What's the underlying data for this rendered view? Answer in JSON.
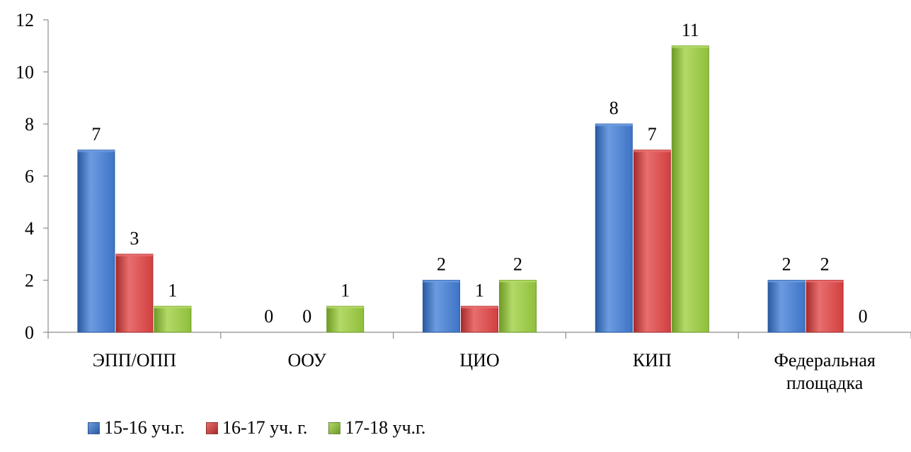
{
  "chart_data": {
    "type": "bar",
    "categories": [
      [
        "ЭПП/ОПП"
      ],
      [
        "ООУ"
      ],
      [
        "ЦИО"
      ],
      [
        "КИП"
      ],
      [
        "Федеральная",
        "площадка"
      ]
    ],
    "series": [
      {
        "name": "15-16 уч.г.",
        "values": [
          7,
          0,
          2,
          8,
          2
        ],
        "labels": [
          "7",
          "0",
          "2",
          "8",
          "2"
        ],
        "color": "#3e74c6",
        "color_light": "#6c9be0",
        "color_dark": "#2a5a9f"
      },
      {
        "name": "16-17 уч. г.",
        "values": [
          3,
          0,
          1,
          7,
          2
        ],
        "labels": [
          "3",
          "0",
          "1",
          "7",
          "2"
        ],
        "color": "#d23f3f",
        "color_light": "#e86e6e",
        "color_dark": "#a62b2b"
      },
      {
        "name": "17-18 уч.г.",
        "values": [
          1,
          1,
          2,
          11,
          0
        ],
        "labels": [
          "1",
          "1",
          "2",
          "11",
          "0"
        ],
        "color": "#8fbf3a",
        "color_light": "#b3d968",
        "color_dark": "#6e9a26"
      }
    ],
    "yticks": [
      "0",
      "2",
      "4",
      "6",
      "8",
      "10",
      "12"
    ],
    "ylim": [
      0,
      12
    ],
    "grid": false,
    "legend_position": "bottom-left"
  }
}
